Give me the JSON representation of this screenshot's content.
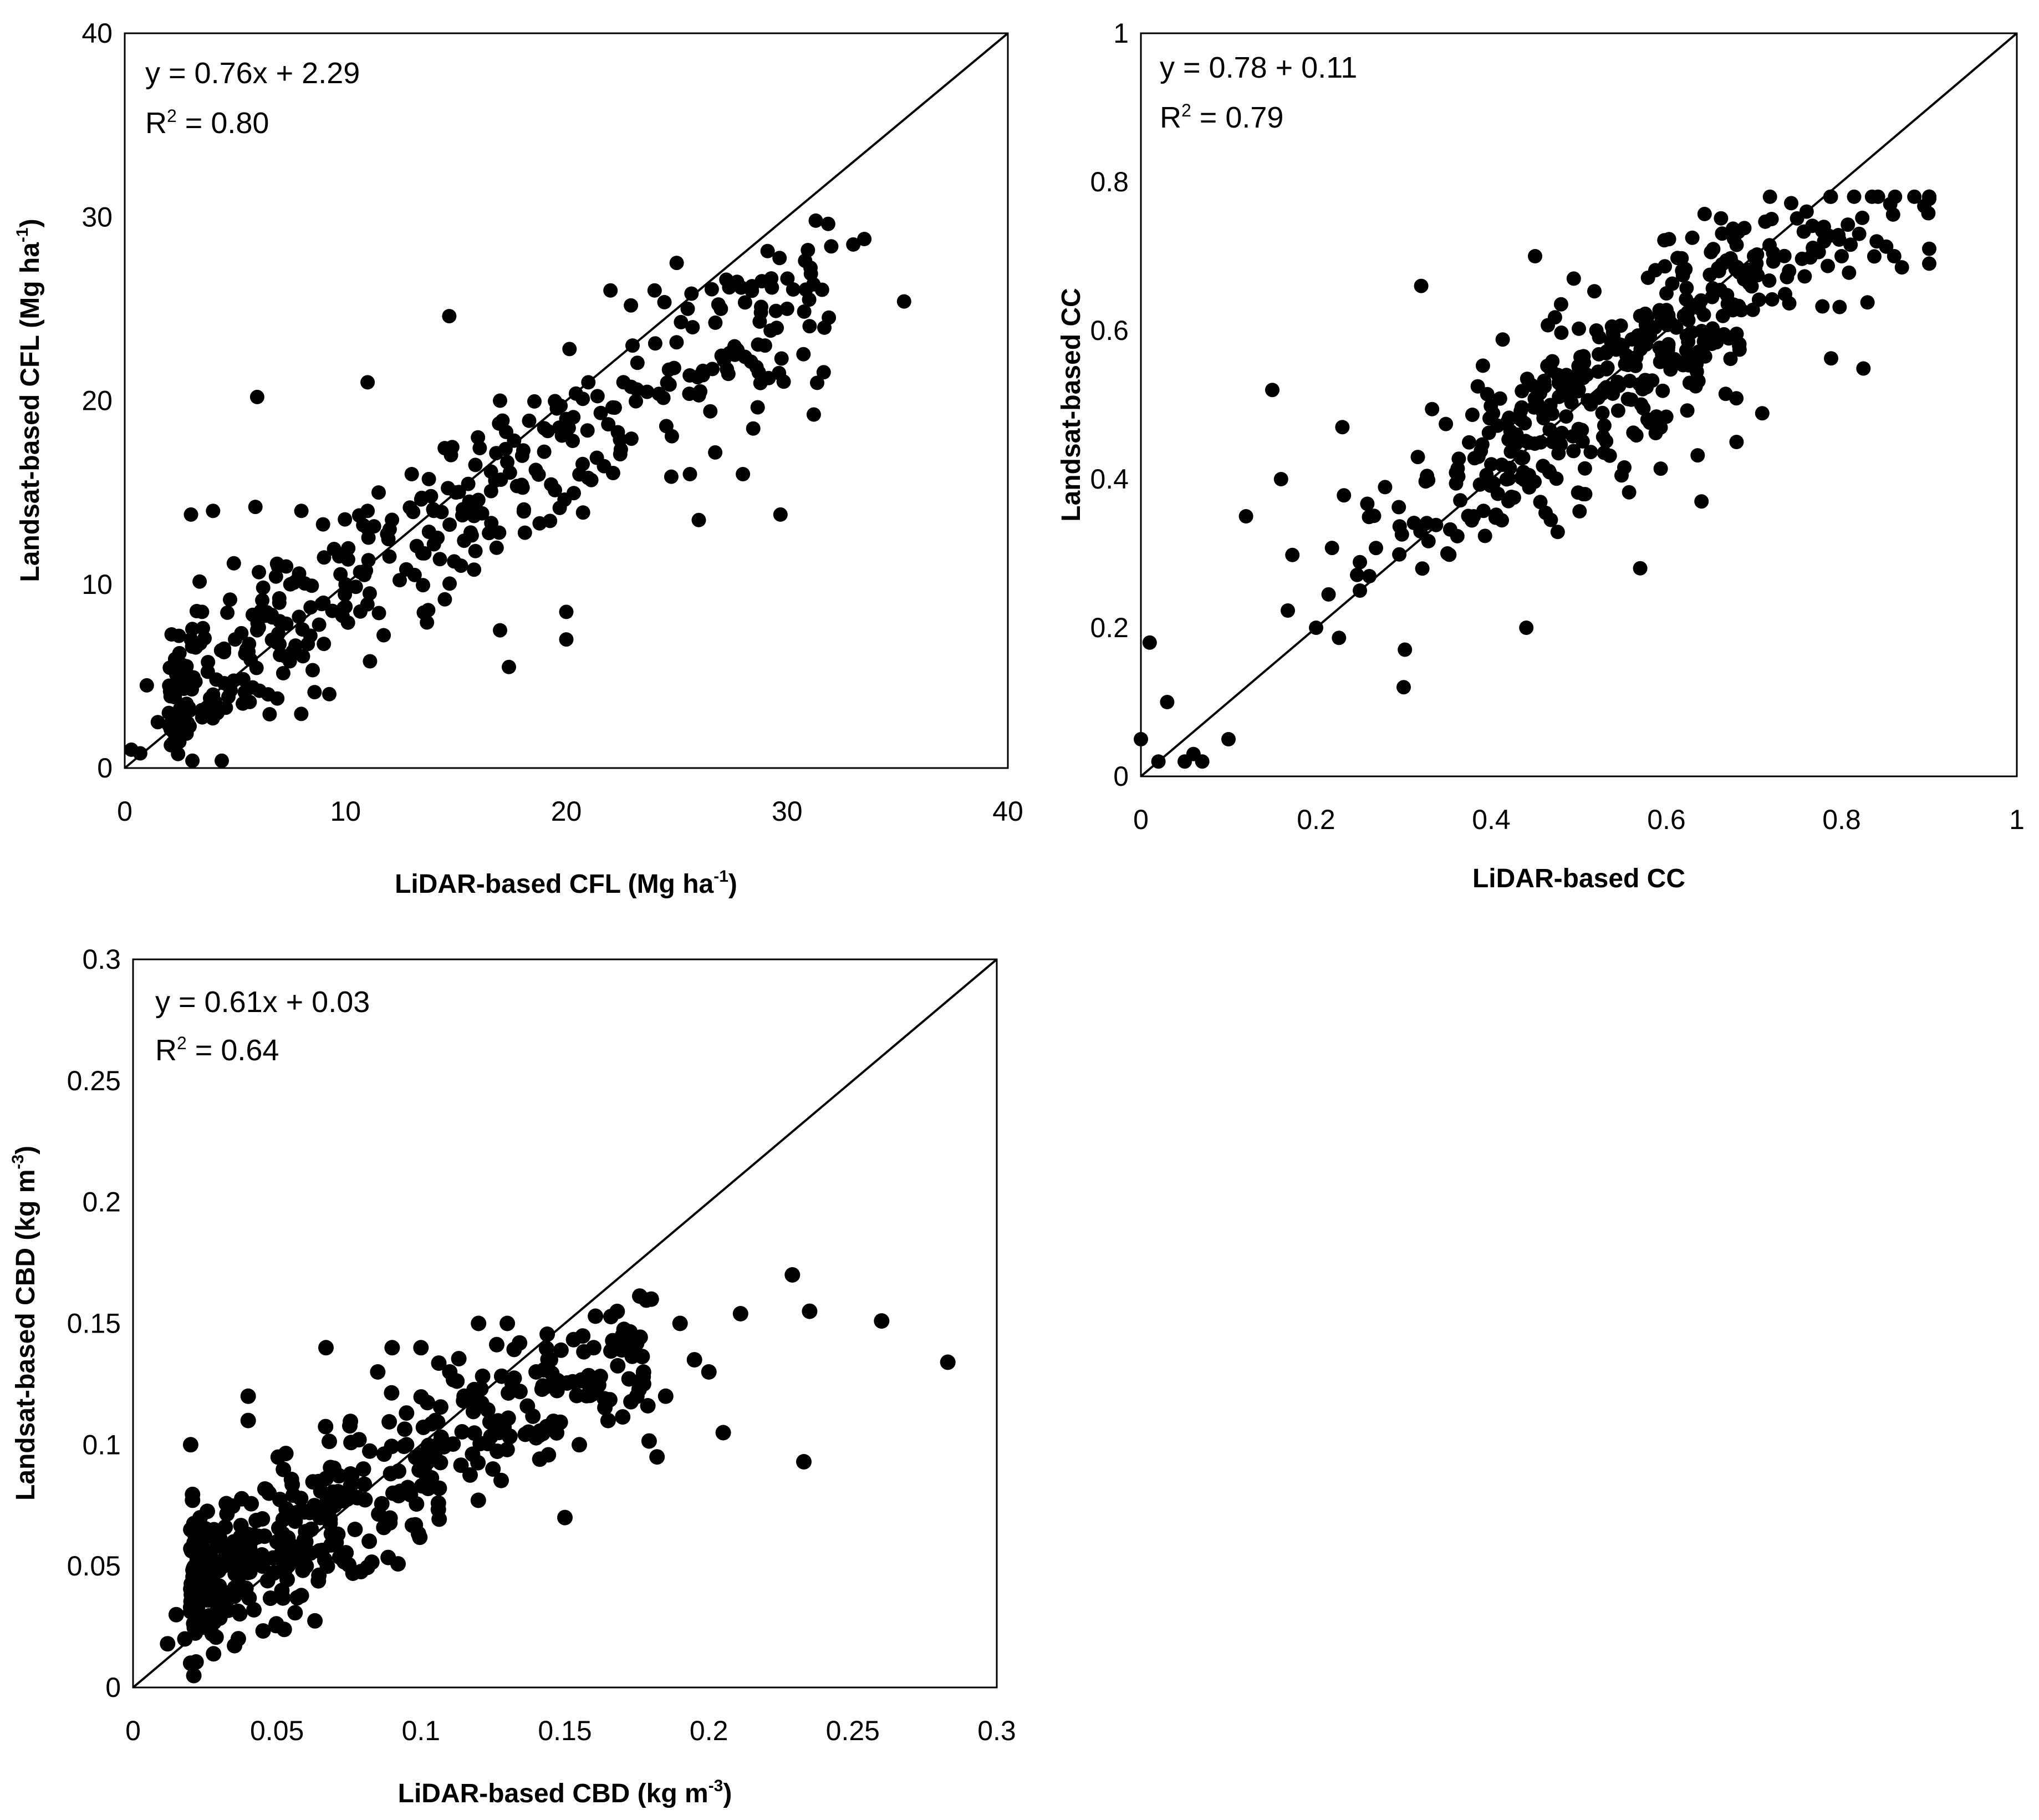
{
  "chart_data": [
    {
      "id": "cfl",
      "type": "scatter",
      "equation": "y = 0.76x + 2.29",
      "r2_label": "R",
      "r2_sup": "2",
      "r2_value": " = 0.80",
      "xlabel_main": "LiDAR-based CFL (Mg ha",
      "xlabel_sup": "-1",
      "xlabel_tail": ")",
      "ylabel_main": "Landsat-based CFL (Mg ha",
      "ylabel_sup": "-1",
      "ylabel_tail": ")",
      "xlim": [
        0,
        40
      ],
      "ylim": [
        0,
        40
      ],
      "xticks": [
        0,
        10,
        20,
        30,
        40
      ],
      "yticks": [
        0,
        10,
        20,
        30,
        40
      ],
      "xtick_labels": [
        "0",
        "10",
        "20",
        "30",
        "40"
      ],
      "ytick_labels": [
        "0",
        "10",
        "20",
        "30",
        "40"
      ],
      "one_to_one": true,
      "point_count": 440,
      "seed": 11,
      "noise": 2.4,
      "x": [
        0.3,
        0.7,
        1.0,
        1.5,
        2.0,
        2.2,
        2.5,
        2.8,
        3.0,
        3.5,
        4.0,
        4.5,
        5.0,
        6.0,
        7.0,
        7.5,
        8.0,
        9.0,
        10.0,
        11.0,
        11.0,
        11.5,
        12.0,
        13.0,
        14.0,
        14.7,
        15.0,
        16.0,
        17.0,
        17.0,
        18.0,
        19.0,
        20.0,
        20.0,
        21.0,
        22.0,
        23.0,
        24.0,
        25.0,
        25.5,
        26.0,
        27.0,
        28.0,
        29.0,
        29.7,
        30.0,
        31.0,
        31.3,
        32.0,
        33.0,
        33.5,
        35.3,
        6.0,
        4.0,
        3.0,
        20.0,
        17.4,
        25.6
      ],
      "y": [
        1.0,
        0.8,
        4.5,
        2.5,
        3.0,
        4.0,
        5.0,
        3.5,
        7.0,
        8.5,
        4.0,
        6.5,
        7.0,
        7.5,
        9.0,
        10.0,
        14.0,
        9.0,
        10.0,
        21.0,
        14.0,
        15.0,
        13.0,
        16.0,
        14.0,
        24.6,
        15.0,
        18.0,
        20.0,
        7.5,
        17.0,
        18.5,
        19.0,
        7.0,
        21.0,
        26.0,
        23.0,
        26.0,
        27.5,
        25.0,
        13.5,
        25.0,
        16.0,
        23.0,
        13.8,
        25.0,
        25.5,
        29.8,
        28.4,
        28.5,
        28.8,
        25.4,
        20.2,
        14.0,
        13.8,
        8.5,
        5.5,
        16.0
      ]
    },
    {
      "id": "cc",
      "type": "scatter",
      "equation": "y = 0.78 + 0.11",
      "r2_label": "R",
      "r2_sup": "2",
      "r2_value": " = 0.79",
      "xlabel_main": "LiDAR-based CC",
      "xlabel_sup": "",
      "xlabel_tail": "",
      "ylabel_main": "Landsat-based CC",
      "ylabel_sup": "",
      "ylabel_tail": "",
      "xlim": [
        0,
        1
      ],
      "ylim": [
        0,
        1
      ],
      "xticks": [
        0,
        0.2,
        0.4,
        0.6,
        0.8,
        1
      ],
      "yticks": [
        0,
        0.2,
        0.4,
        0.6,
        0.8,
        1
      ],
      "xtick_labels": [
        "0",
        "0.2",
        "0.4",
        "0.6",
        "0.8",
        "1"
      ],
      "ytick_labels": [
        "0",
        "0.2",
        "0.4",
        "0.6",
        "0.8",
        "1"
      ],
      "one_to_one": true,
      "point_count": 460,
      "seed": 23,
      "noise": 0.06,
      "x": [
        0.0,
        0.01,
        0.02,
        0.03,
        0.05,
        0.06,
        0.07,
        0.1,
        0.12,
        0.15,
        0.16,
        0.2,
        0.23,
        0.25,
        0.3,
        0.32,
        0.35,
        0.38,
        0.4,
        0.42,
        0.44,
        0.45,
        0.47,
        0.5,
        0.52,
        0.55,
        0.57,
        0.58,
        0.6,
        0.62,
        0.64,
        0.66,
        0.68,
        0.7,
        0.72,
        0.74,
        0.76,
        0.78,
        0.8,
        0.82,
        0.84,
        0.86,
        0.9,
        0.9
      ],
      "y": [
        0.05,
        0.18,
        0.02,
        0.1,
        0.02,
        0.03,
        0.02,
        0.05,
        0.35,
        0.52,
        0.4,
        0.2,
        0.47,
        0.25,
        0.12,
        0.66,
        0.3,
        0.35,
        0.42,
        0.48,
        0.2,
        0.7,
        0.45,
        0.55,
        0.6,
        0.58,
        0.28,
        0.6,
        0.65,
        0.62,
        0.37,
        0.68,
        0.45,
        0.7,
        0.75,
        0.68,
        0.76,
        0.72,
        0.7,
        0.73,
        0.72,
        0.7,
        0.69,
        0.71
      ]
    },
    {
      "id": "cbd",
      "type": "scatter",
      "equation": "y = 0.61x + 0.03",
      "r2_label": "R",
      "r2_sup": "2",
      "r2_value": " = 0.64",
      "xlabel_main": "LiDAR-based CBD (kg m",
      "xlabel_sup": "-3",
      "xlabel_tail": ")",
      "ylabel_main": "Landsat-based CBD (kg m",
      "ylabel_sup": "-3",
      "ylabel_tail": ")",
      "xlim": [
        0,
        0.3
      ],
      "ylim": [
        0,
        0.3
      ],
      "xticks": [
        0,
        0.05,
        0.1,
        0.15,
        0.2,
        0.25,
        0.3
      ],
      "yticks": [
        0,
        0.05,
        0.1,
        0.15,
        0.2,
        0.25,
        0.3
      ],
      "xtick_labels": [
        "0",
        "0.05",
        "0.1",
        "0.15",
        "0.2",
        "0.25",
        "0.3"
      ],
      "ytick_labels": [
        "0",
        "0.05",
        "0.1",
        "0.15",
        "0.2",
        "0.25",
        "0.3"
      ],
      "one_to_one": true,
      "point_count": 470,
      "seed": 37,
      "noise": 0.016,
      "x": [
        0.012,
        0.015,
        0.018,
        0.02,
        0.02,
        0.022,
        0.025,
        0.03,
        0.035,
        0.04,
        0.04,
        0.045,
        0.05,
        0.055,
        0.06,
        0.065,
        0.067,
        0.07,
        0.075,
        0.08,
        0.085,
        0.09,
        0.095,
        0.1,
        0.105,
        0.11,
        0.115,
        0.12,
        0.125,
        0.13,
        0.14,
        0.145,
        0.15,
        0.155,
        0.16,
        0.165,
        0.17,
        0.175,
        0.18,
        0.182,
        0.185,
        0.19,
        0.195,
        0.2,
        0.205,
        0.211,
        0.229,
        0.233,
        0.235,
        0.26,
        0.283
      ],
      "y": [
        0.018,
        0.03,
        0.02,
        0.01,
        0.1,
        0.04,
        0.05,
        0.04,
        0.06,
        0.11,
        0.12,
        0.05,
        0.06,
        0.07,
        0.06,
        0.07,
        0.14,
        0.075,
        0.08,
        0.09,
        0.13,
        0.14,
        0.1,
        0.14,
        0.11,
        0.13,
        0.12,
        0.15,
        0.09,
        0.15,
        0.13,
        0.135,
        0.07,
        0.1,
        0.14,
        0.11,
        0.145,
        0.12,
        0.16,
        0.095,
        0.12,
        0.15,
        0.135,
        0.13,
        0.105,
        0.154,
        0.17,
        0.093,
        0.155,
        0.151,
        0.134
      ]
    }
  ]
}
